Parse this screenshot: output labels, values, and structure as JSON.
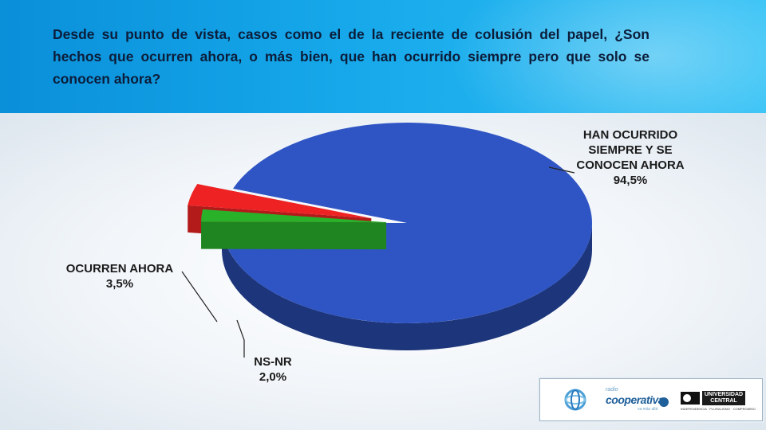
{
  "question": "Desde su punto de vista, casos como el de la reciente de colusión del papel, ¿Son hechos que ocurren ahora,  o más bien, que han ocurrido siempre pero que solo se conocen ahora?",
  "chart_data": {
    "type": "pie",
    "title": "",
    "slices": [
      {
        "label_lines": [
          "HAN OCURRIDO",
          "SIEMPRE Y SE",
          "CONOCEN AHORA",
          "94,5%"
        ],
        "value": 94.5,
        "color": "#2f55c4"
      },
      {
        "label_lines": [
          "NS-NR",
          "2,0%"
        ],
        "value": 2.0,
        "color": "#29b12a"
      },
      {
        "label_lines": [
          "OCURREN AHORA",
          "3,5%"
        ],
        "value": 3.5,
        "color": "#ee2222"
      }
    ],
    "style": "3d-exploded"
  },
  "logos": {
    "cooperativa_small": "radio",
    "cooperativa_name": "cooperativa",
    "cooperativa_tag": "va más allá",
    "university_name": "UNIVERSIDAD CENTRAL",
    "university_tag": "INDEPENDENCIA · PLURALISMO · COMPROMISO",
    "icons": [
      "globe-icon",
      "university-seal-icon"
    ]
  }
}
